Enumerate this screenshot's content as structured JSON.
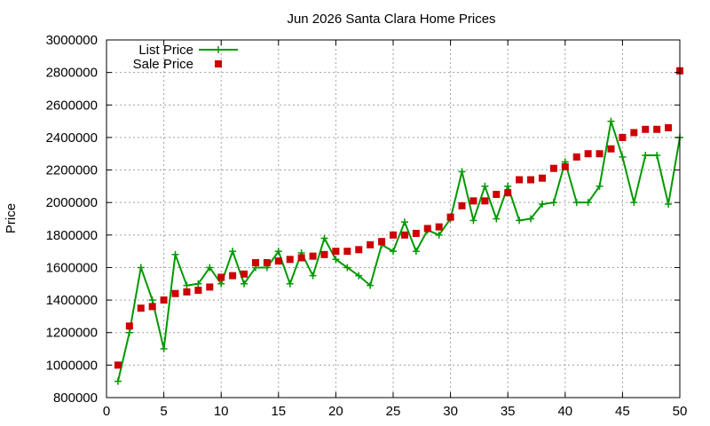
{
  "chart_data": {
    "type": "line",
    "title": "Jun 2026 Santa Clara Home Prices",
    "xlabel": "",
    "ylabel": "Price",
    "xlim": [
      0,
      50
    ],
    "ylim": [
      800000,
      3000000
    ],
    "x_ticks": [
      0,
      5,
      10,
      15,
      20,
      25,
      30,
      35,
      40,
      45,
      50
    ],
    "y_ticks": [
      800000,
      1000000,
      1200000,
      1400000,
      1600000,
      1800000,
      2000000,
      2200000,
      2400000,
      2600000,
      2800000,
      3000000
    ],
    "x_tick_labels": [
      "0",
      "5",
      "10",
      "15",
      "20",
      "25",
      "30",
      "35",
      "40",
      "45",
      "50"
    ],
    "y_tick_labels": [
      "800000",
      "1000000",
      "1200000",
      "1400000",
      "1600000",
      "1800000",
      "2000000",
      "2200000",
      "2400000",
      "2600000",
      "2800000",
      "3000000"
    ],
    "grid": true,
    "legend_position": "top-left",
    "series": [
      {
        "name": "List Price",
        "style": "line-with-plus-markers",
        "color": "#009900",
        "x": [
          1,
          2,
          3,
          4,
          5,
          6,
          7,
          8,
          9,
          10,
          11,
          12,
          13,
          14,
          15,
          16,
          17,
          18,
          19,
          20,
          21,
          22,
          23,
          24,
          25,
          26,
          27,
          28,
          29,
          30,
          31,
          32,
          33,
          34,
          35,
          36,
          37,
          38,
          39,
          40,
          41,
          42,
          43,
          44,
          45,
          46,
          47,
          48,
          49,
          50
        ],
        "values": [
          900000,
          1200000,
          1600000,
          1400000,
          1100000,
          1680000,
          1490000,
          1500000,
          1600000,
          1500000,
          1700000,
          1500000,
          1600000,
          1600000,
          1700000,
          1500000,
          1690000,
          1550000,
          1780000,
          1650000,
          1600000,
          1550000,
          1490000,
          1740000,
          1700000,
          1880000,
          1700000,
          1830000,
          1800000,
          1900000,
          2190000,
          1890000,
          2100000,
          1900000,
          2100000,
          1890000,
          1900000,
          1990000,
          2000000,
          2250000,
          2000000,
          2000000,
          2100000,
          2500000,
          2280000,
          2000000,
          2290000,
          2290000,
          1990000,
          2400000
        ]
      },
      {
        "name": "Sale Price",
        "style": "square-markers",
        "color": "#cc0000",
        "x": [
          1,
          2,
          3,
          4,
          5,
          6,
          7,
          8,
          9,
          10,
          11,
          12,
          13,
          14,
          15,
          16,
          17,
          18,
          19,
          20,
          21,
          22,
          23,
          24,
          25,
          26,
          27,
          28,
          29,
          30,
          31,
          32,
          33,
          34,
          35,
          36,
          37,
          38,
          39,
          40,
          41,
          42,
          43,
          44,
          45,
          46,
          47,
          48,
          49,
          50
        ],
        "values": [
          1000000,
          1240000,
          1350000,
          1360000,
          1400000,
          1440000,
          1450000,
          1460000,
          1480000,
          1540000,
          1550000,
          1560000,
          1630000,
          1630000,
          1640000,
          1650000,
          1660000,
          1670000,
          1680000,
          1700000,
          1700000,
          1710000,
          1740000,
          1760000,
          1800000,
          1800000,
          1810000,
          1840000,
          1850000,
          1910000,
          1980000,
          2010000,
          2010000,
          2050000,
          2060000,
          2140000,
          2140000,
          2150000,
          2210000,
          2220000,
          2280000,
          2300000,
          2300000,
          2330000,
          2400000,
          2430000,
          2450000,
          2450000,
          2460000,
          2810000
        ]
      }
    ]
  }
}
